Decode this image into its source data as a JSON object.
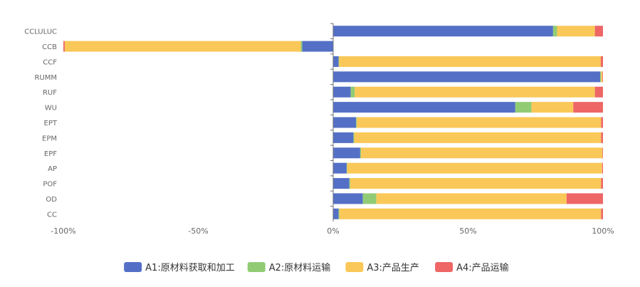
{
  "chart_data": {
    "type": "bar",
    "orientation": "horizontal",
    "stacked": true,
    "x_unit": "percent",
    "xlim": [
      -100,
      100
    ],
    "x_ticks": [
      "-100%",
      "-50%",
      "0%",
      "50%",
      "100%"
    ],
    "categories": [
      "CCLULUC",
      "CCB",
      "CCF",
      "RUMM",
      "RUF",
      "WU",
      "EPT",
      "EPM",
      "EPF",
      "AP",
      "POF",
      "OD",
      "CC"
    ],
    "series": [
      {
        "name": "A1:原材料获取和加工",
        "color": "#5470c6",
        "values": [
          81.5,
          -11.5,
          2,
          99,
          6.5,
          67.5,
          8.5,
          7.5,
          10,
          5,
          6,
          11,
          2
        ]
      },
      {
        "name": "A2:原材料运输",
        "color": "#91cc75",
        "values": [
          1.5,
          -0.5,
          0.2,
          0.3,
          1.5,
          6,
          0.3,
          0.3,
          0.3,
          0.2,
          0.3,
          5,
          0.3
        ]
      },
      {
        "name": "A3:产品生产",
        "color": "#fac858",
        "values": [
          14,
          -87.5,
          97,
          0.5,
          89,
          15.5,
          90.5,
          91.5,
          89.5,
          94.5,
          93,
          70.5,
          97
        ]
      },
      {
        "name": "A4:产品运输",
        "color": "#ee6666",
        "values": [
          3,
          -0.5,
          0.8,
          0.2,
          3,
          11,
          0.7,
          0.7,
          0.2,
          0.3,
          0.7,
          13.5,
          0.7
        ]
      }
    ],
    "legend_position": "bottom",
    "grid": false
  }
}
